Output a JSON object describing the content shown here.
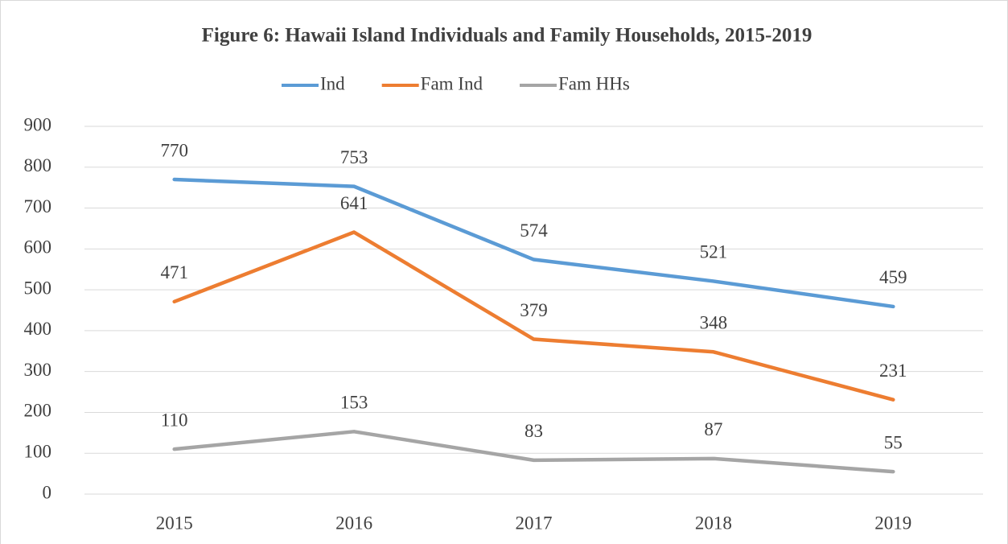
{
  "chart_data": {
    "type": "line",
    "title": "Figure 6: Hawaii Island Individuals and Family Households, 2015-2019",
    "categories": [
      "2015",
      "2016",
      "2017",
      "2018",
      "2019"
    ],
    "series": [
      {
        "name": "Ind",
        "color": "#5b9bd5",
        "values": [
          770,
          753,
          574,
          521,
          459
        ]
      },
      {
        "name": "Fam Ind",
        "color": "#ed7d31",
        "values": [
          471,
          641,
          379,
          348,
          231
        ]
      },
      {
        "name": "Fam HHs",
        "color": "#a5a5a5",
        "values": [
          110,
          153,
          83,
          87,
          55
        ]
      }
    ],
    "ylim": [
      0,
      900
    ],
    "yticks": [
      0,
      100,
      200,
      300,
      400,
      500,
      600,
      700,
      800,
      900
    ],
    "grid": true,
    "legend": "top"
  }
}
